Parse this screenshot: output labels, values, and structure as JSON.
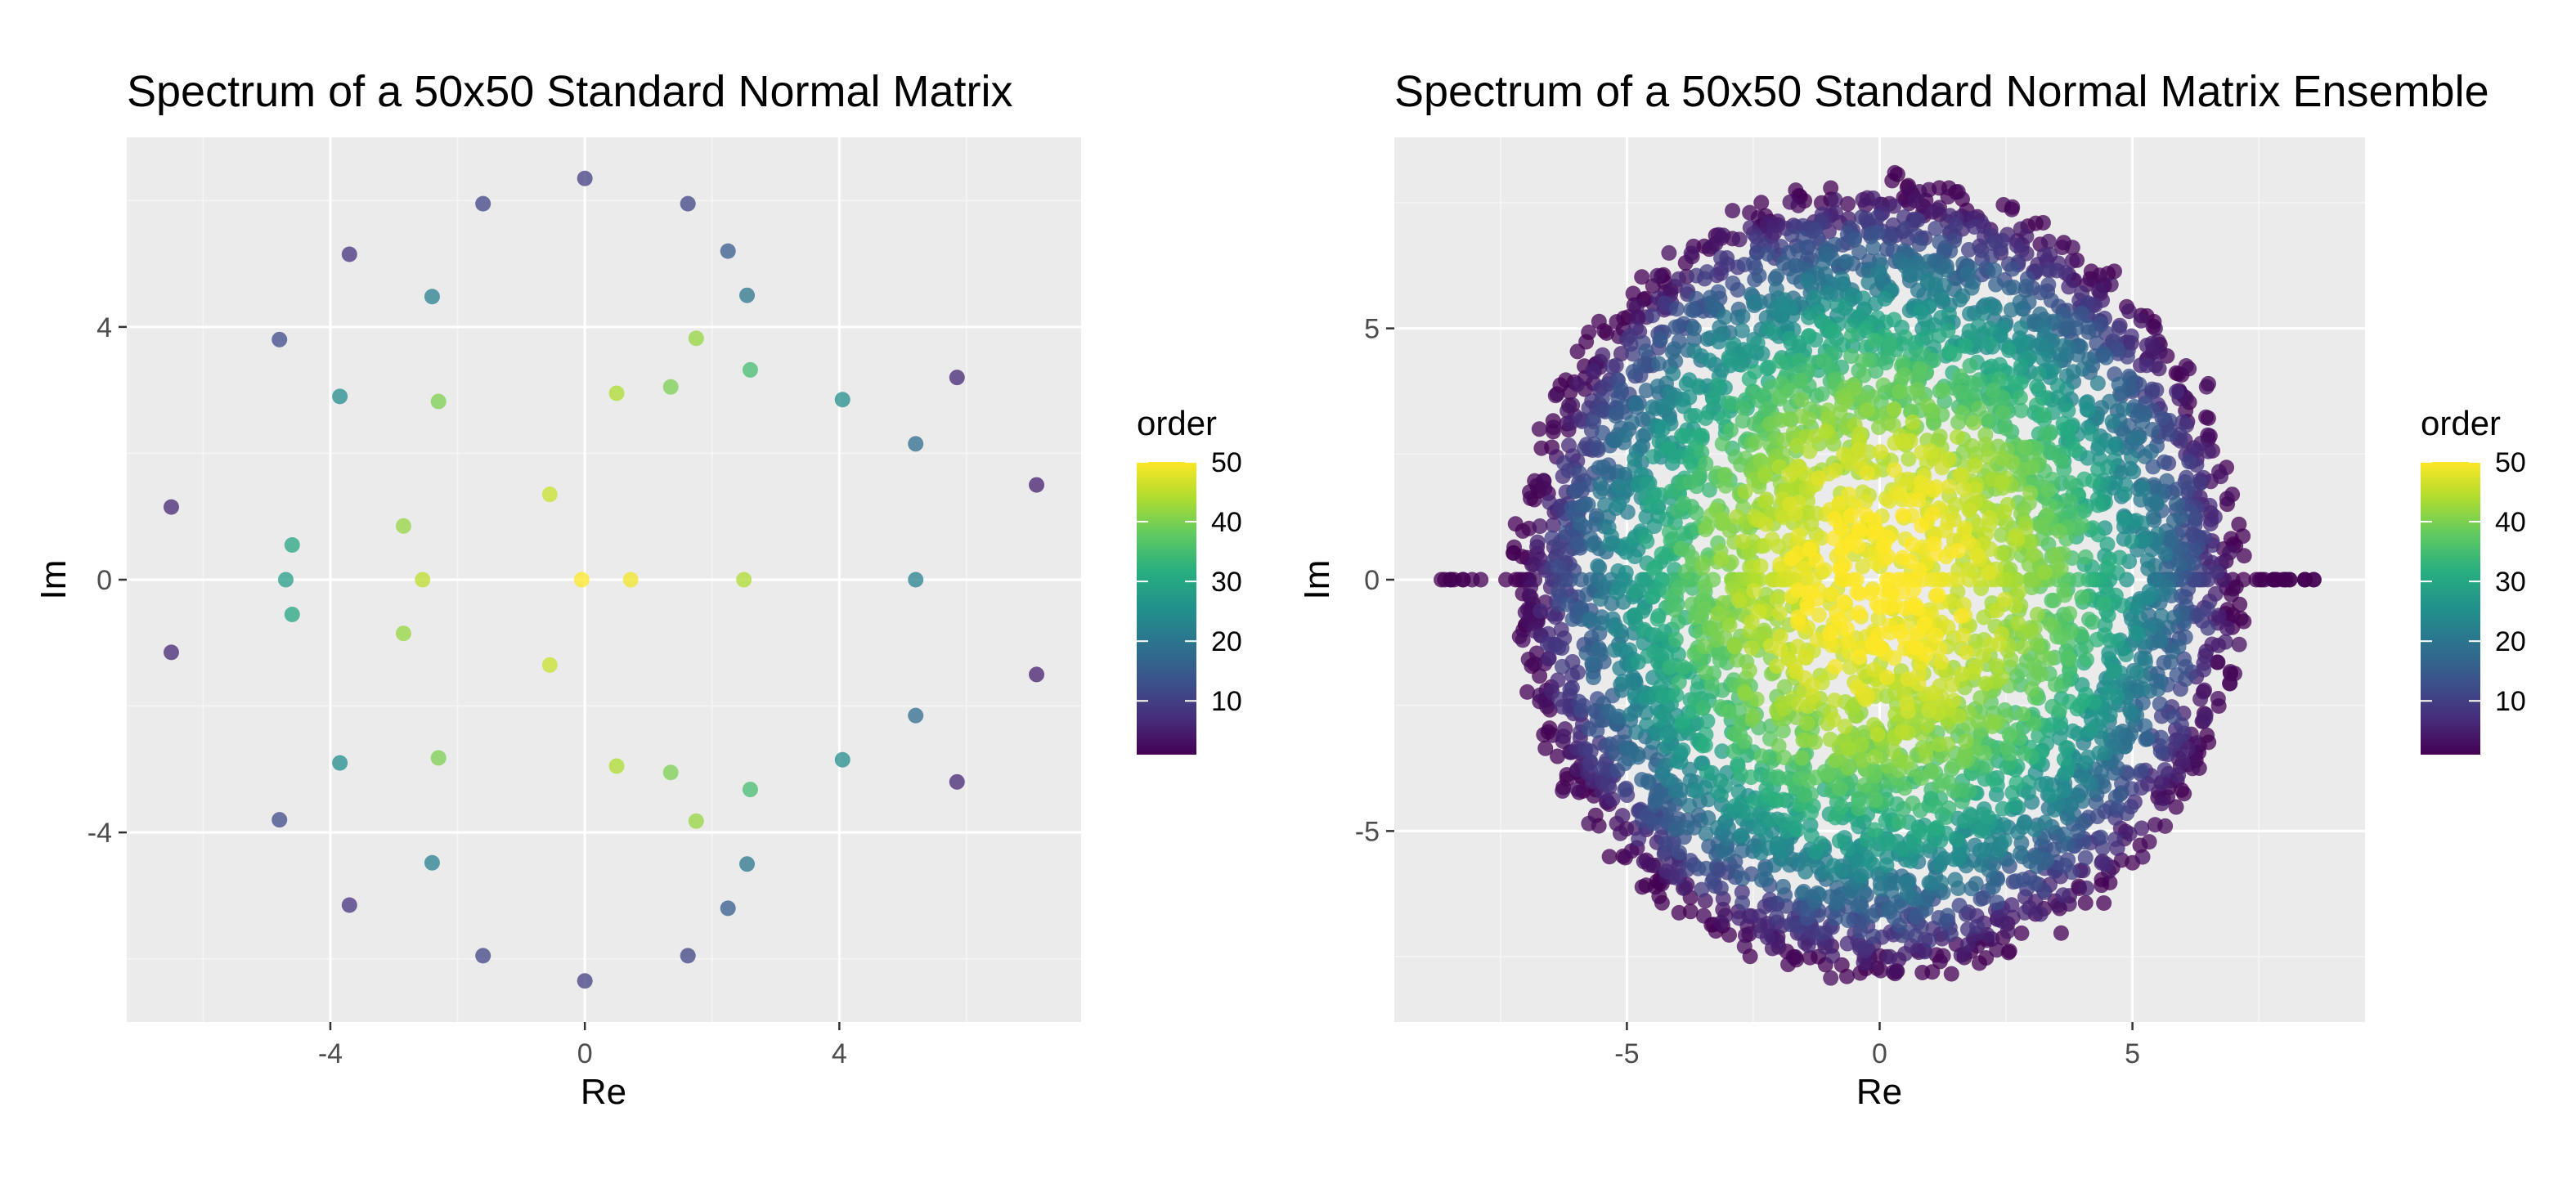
{
  "chart_data": [
    {
      "type": "scatter",
      "title": "Spectrum of a 50x50 Standard Normal Matrix",
      "xlabel": "Re",
      "ylabel": "Im",
      "xlim": [
        -7.2,
        7.8
      ],
      "ylim": [
        -7.0,
        7.0
      ],
      "xticks": [
        -4,
        0,
        4
      ],
      "xtick_labels": [
        "-4",
        "0",
        "4"
      ],
      "yticks": [
        -4,
        0,
        4
      ],
      "ytick_labels": [
        "-4",
        "0",
        "4"
      ],
      "minor_xticks": [
        -6,
        -2,
        2,
        6
      ],
      "minor_yticks": [
        -6,
        -2,
        2,
        6
      ],
      "grid": true,
      "legend": {
        "title": "order",
        "position": "right",
        "range": [
          1,
          50
        ],
        "ticks": [
          10,
          20,
          30,
          40,
          50
        ],
        "tick_labels": [
          "10",
          "20",
          "30",
          "40",
          "50"
        ]
      },
      "colormap": "viridis",
      "points": [
        {
          "x": 0.0,
          "y": 6.35,
          "order": 10
        },
        {
          "x": 1.62,
          "y": 5.95,
          "order": 11
        },
        {
          "x": -1.6,
          "y": 5.95,
          "order": 11
        },
        {
          "x": -3.7,
          "y": 5.15,
          "order": 8
        },
        {
          "x": 2.25,
          "y": 5.2,
          "order": 15
        },
        {
          "x": 2.55,
          "y": 4.5,
          "order": 20
        },
        {
          "x": -2.4,
          "y": 4.48,
          "order": 22
        },
        {
          "x": -4.8,
          "y": 3.8,
          "order": 12
        },
        {
          "x": 1.75,
          "y": 3.82,
          "order": 42
        },
        {
          "x": 2.6,
          "y": 3.32,
          "order": 35
        },
        {
          "x": 5.85,
          "y": 3.2,
          "order": 6
        },
        {
          "x": 1.35,
          "y": 3.05,
          "order": 40
        },
        {
          "x": 0.5,
          "y": 2.95,
          "order": 44
        },
        {
          "x": -3.85,
          "y": 2.9,
          "order": 25
        },
        {
          "x": -2.3,
          "y": 2.82,
          "order": 40
        },
        {
          "x": 4.05,
          "y": 2.85,
          "order": 25
        },
        {
          "x": 5.2,
          "y": 2.15,
          "order": 18
        },
        {
          "x": 7.1,
          "y": 1.5,
          "order": 5
        },
        {
          "x": -0.55,
          "y": 1.35,
          "order": 46
        },
        {
          "x": -6.5,
          "y": 1.15,
          "order": 6
        },
        {
          "x": -2.85,
          "y": 0.85,
          "order": 42
        },
        {
          "x": -4.6,
          "y": 0.55,
          "order": 30
        },
        {
          "x": -4.7,
          "y": 0.0,
          "order": 28
        },
        {
          "x": -2.55,
          "y": 0.0,
          "order": 45
        },
        {
          "x": -0.05,
          "y": 0.0,
          "order": 50
        },
        {
          "x": 0.72,
          "y": 0.0,
          "order": 49
        },
        {
          "x": 2.5,
          "y": 0.0,
          "order": 44
        },
        {
          "x": 5.2,
          "y": 0.0,
          "order": 22
        },
        {
          "x": -4.6,
          "y": -0.55,
          "order": 30
        },
        {
          "x": -2.85,
          "y": -0.85,
          "order": 42
        },
        {
          "x": -0.55,
          "y": -1.35,
          "order": 46
        },
        {
          "x": -6.5,
          "y": -1.15,
          "order": 6
        },
        {
          "x": 7.1,
          "y": -1.5,
          "order": 5
        },
        {
          "x": 5.2,
          "y": -2.15,
          "order": 18
        },
        {
          "x": -3.85,
          "y": -2.9,
          "order": 25
        },
        {
          "x": -2.3,
          "y": -2.82,
          "order": 40
        },
        {
          "x": 4.05,
          "y": -2.85,
          "order": 25
        },
        {
          "x": 0.5,
          "y": -2.95,
          "order": 44
        },
        {
          "x": 1.35,
          "y": -3.05,
          "order": 40
        },
        {
          "x": 5.85,
          "y": -3.2,
          "order": 6
        },
        {
          "x": 2.6,
          "y": -3.32,
          "order": 35
        },
        {
          "x": 1.75,
          "y": -3.82,
          "order": 42
        },
        {
          "x": -4.8,
          "y": -3.8,
          "order": 12
        },
        {
          "x": -2.4,
          "y": -4.48,
          "order": 22
        },
        {
          "x": 2.55,
          "y": -4.5,
          "order": 20
        },
        {
          "x": -3.7,
          "y": -5.15,
          "order": 8
        },
        {
          "x": 2.25,
          "y": -5.2,
          "order": 15
        },
        {
          "x": -1.6,
          "y": -5.95,
          "order": 11
        },
        {
          "x": 1.62,
          "y": -5.95,
          "order": 11
        },
        {
          "x": 0.0,
          "y": -6.35,
          "order": 10
        }
      ]
    },
    {
      "type": "scatter",
      "title": "Spectrum of a 50x50 Standard Normal Matrix Ensemble",
      "xlabel": "Re",
      "ylabel": "Im",
      "xlim": [
        -9.6,
        9.6
      ],
      "ylim": [
        -8.8,
        8.8
      ],
      "xticks": [
        -5,
        0,
        5
      ],
      "xtick_labels": [
        "-5",
        "0",
        "5"
      ],
      "yticks": [
        -5,
        0,
        5
      ],
      "ytick_labels": [
        "-5",
        "0",
        "5"
      ],
      "minor_xticks": [
        -7.5,
        -2.5,
        2.5,
        7.5
      ],
      "minor_yticks": [
        -7.5,
        -2.5,
        2.5,
        7.5
      ],
      "grid": true,
      "legend": {
        "title": "order",
        "position": "right",
        "range": [
          1,
          50
        ],
        "ticks": [
          10,
          20,
          30,
          40,
          50
        ],
        "tick_labels": [
          "10",
          "20",
          "30",
          "40",
          "50"
        ]
      },
      "colormap": "viridis",
      "ensemble": {
        "point_count": 5000,
        "disk_radius": 7.07,
        "real_axis_extent": 8.7,
        "real_axis_points": 160
      }
    }
  ],
  "colormap_stops": [
    "#440154",
    "#472d7b",
    "#3b528b",
    "#2c728e",
    "#21918c",
    "#28ae80",
    "#5ec962",
    "#addc30",
    "#fde725"
  ],
  "colors": {
    "panel_background": "#ebebeb",
    "grid_major": "#ffffff",
    "grid_minor": "#f5f5f5",
    "point_alpha": 0.75
  }
}
